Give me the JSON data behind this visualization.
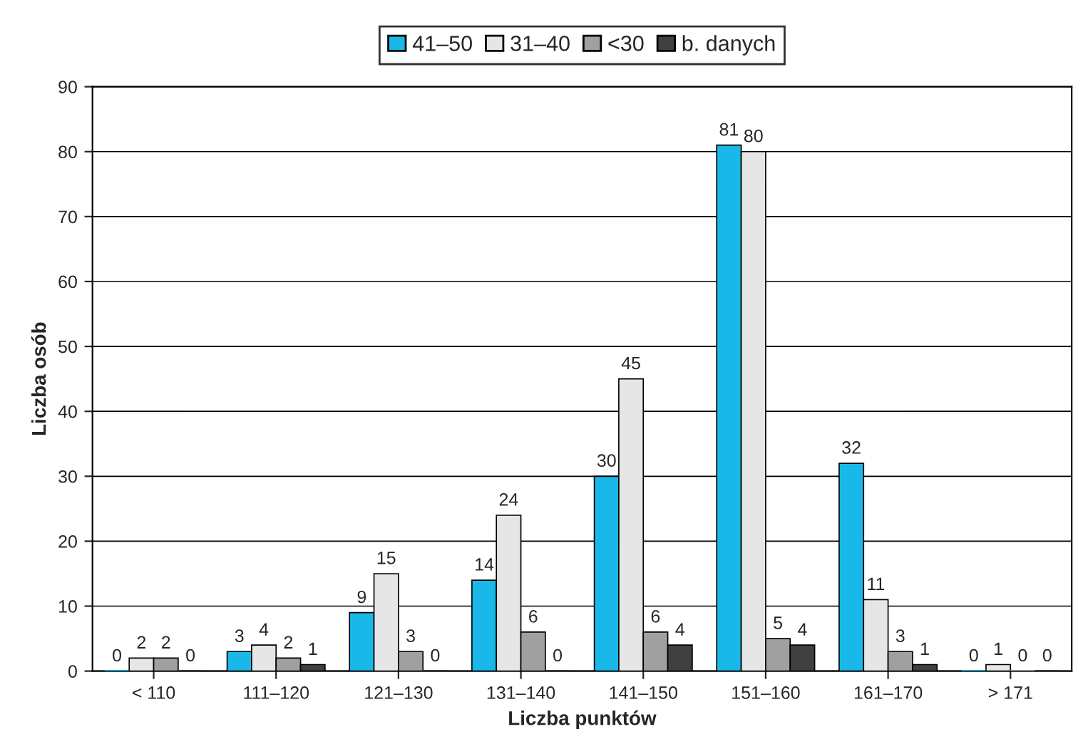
{
  "chart_data": {
    "type": "bar",
    "xlabel": "Liczba punktów",
    "ylabel": "Liczba osób",
    "categories": [
      "< 110",
      "111–120",
      "121–130",
      "131–140",
      "141–150",
      "151–160",
      "161–170",
      "> 171"
    ],
    "series": [
      {
        "name": "41–50",
        "color": "#1ab8e8",
        "values": [
          0,
          3,
          9,
          14,
          30,
          81,
          32,
          0
        ]
      },
      {
        "name": "31–40",
        "color": "#e6e6e6",
        "values": [
          2,
          4,
          15,
          24,
          45,
          80,
          11,
          1
        ]
      },
      {
        "name": "<30",
        "color": "#a0a0a0",
        "values": [
          2,
          2,
          3,
          6,
          6,
          5,
          3,
          0
        ]
      },
      {
        "name": "b. danych",
        "color": "#404040",
        "values": [
          0,
          1,
          0,
          0,
          4,
          4,
          1,
          0
        ]
      }
    ],
    "ylim": [
      0,
      90
    ],
    "yticks": [
      0,
      10,
      20,
      30,
      40,
      50,
      60,
      70,
      80,
      90
    ],
    "grid": "y",
    "legend": "top",
    "data_labels": true
  }
}
